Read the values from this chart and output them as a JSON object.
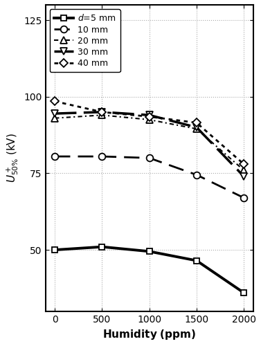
{
  "humidity": [
    0,
    500,
    1000,
    1500,
    2000
  ],
  "series": [
    {
      "label": "$d$=5 mm",
      "values": [
        50.0,
        51.0,
        49.5,
        46.5,
        36.0
      ],
      "marker": "s",
      "linewidth": 2.8,
      "markersize": 6,
      "dashes": []
    },
    {
      "label": "10 mm",
      "values": [
        80.5,
        80.5,
        80.0,
        74.5,
        67.0
      ],
      "marker": "o",
      "linewidth": 2.0,
      "markersize": 7,
      "dashes": [
        8,
        4
      ]
    },
    {
      "label": "20 mm",
      "values": [
        93.0,
        94.0,
        92.5,
        89.5,
        76.0
      ],
      "marker": "^",
      "linewidth": 1.5,
      "markersize": 7,
      "dashes": [
        3,
        2,
        1,
        2
      ]
    },
    {
      "label": "30 mm",
      "values": [
        94.5,
        95.0,
        94.0,
        90.0,
        74.0
      ],
      "marker": "v",
      "linewidth": 2.5,
      "markersize": 7,
      "dashes": [
        9,
        3
      ]
    },
    {
      "label": "40 mm",
      "values": [
        98.5,
        95.0,
        93.5,
        91.5,
        78.0
      ],
      "marker": "D",
      "linewidth": 2.0,
      "markersize": 6,
      "dashes": [
        2,
        2
      ]
    }
  ],
  "xlim": [
    -100,
    2100
  ],
  "ylim": [
    30,
    130
  ],
  "yticks": [
    50,
    75,
    100,
    125
  ],
  "xticks": [
    0,
    500,
    1000,
    1500,
    2000
  ]
}
